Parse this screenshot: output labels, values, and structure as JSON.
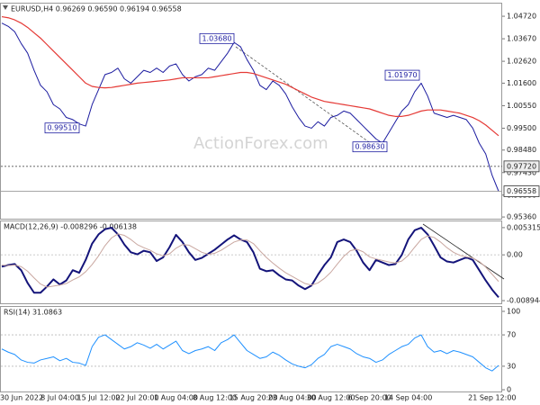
{
  "chart_data": [
    {
      "type": "line",
      "title": "EURUSD,H4 0.96269 0.96590 0.96194 0.96558",
      "watermark": "ActionForex.com",
      "ylim": [
        0.9528,
        1.0531
      ],
      "yticks": [
        {
          "value": 1.0472,
          "label": "1.04720"
        },
        {
          "value": 1.0367,
          "label": "1.03670"
        },
        {
          "value": 1.0262,
          "label": "1.02620"
        },
        {
          "value": 1.016,
          "label": "1.01600"
        },
        {
          "value": 1.0055,
          "label": "1.00550"
        },
        {
          "value": 0.995,
          "label": "0.99500"
        },
        {
          "value": 0.9848,
          "label": "0.98480"
        },
        {
          "value": 0.9743,
          "label": "0.97430"
        },
        {
          "value": 0.9638,
          "label": "0.96380"
        },
        {
          "value": 0.9536,
          "label": "0.95360"
        }
      ],
      "hlines": [
        {
          "value": 0.9772,
          "label": "0.97720",
          "style": "dashed"
        },
        {
          "value": 0.96558,
          "label": "0.96558",
          "style": "solid"
        }
      ],
      "annotations": [
        {
          "value": 1.0368,
          "label": "1.03680"
        },
        {
          "value": 1.0197,
          "label": "1.01970"
        },
        {
          "value": 0.9951,
          "label": "0.99510"
        },
        {
          "value": 0.9863,
          "label": "0.98630"
        }
      ],
      "series": [
        {
          "color": "#1c1ca0",
          "width": 1,
          "values": [
            1.044,
            1.0425,
            1.04,
            1.0345,
            1.03,
            1.022,
            1.015,
            1.012,
            1.006,
            1.004,
            1.0,
            0.999,
            0.997,
            0.996,
            1.006,
            1.013,
            1.02,
            1.021,
            1.023,
            1.018,
            1.016,
            1.019,
            1.022,
            1.021,
            1.023,
            1.021,
            1.024,
            1.025,
            1.02,
            1.017,
            1.019,
            1.02,
            1.023,
            1.022,
            1.026,
            1.03,
            1.035,
            1.033,
            1.027,
            1.022,
            1.015,
            1.013,
            1.017,
            1.015,
            1.011,
            1.005,
            1.0,
            0.996,
            0.995,
            0.998,
            0.996,
            1.0,
            1.001,
            1.003,
            1.002,
            0.999,
            0.996,
            0.993,
            0.99,
            0.988,
            0.993,
            0.998,
            1.003,
            1.006,
            1.012,
            1.016,
            1.01,
            1.002,
            1.001,
            1.0,
            1.001,
            1.0,
            0.999,
            0.995,
            0.988,
            0.983,
            0.973,
            0.9656
          ]
        },
        {
          "color": "#e53935",
          "width": 1.2,
          "values": [
            1.047,
            1.0465,
            1.0455,
            1.044,
            1.042,
            1.0395,
            1.037,
            1.034,
            1.031,
            1.028,
            1.025,
            1.022,
            1.019,
            1.016,
            1.0145,
            1.014,
            1.0138,
            1.014,
            1.0145,
            1.015,
            1.0155,
            1.016,
            1.0163,
            1.0166,
            1.0169,
            1.0172,
            1.0175,
            1.018,
            1.0185,
            1.0185,
            1.0185,
            1.0185,
            1.0185,
            1.019,
            1.0195,
            1.02,
            1.0205,
            1.021,
            1.021,
            1.0205,
            1.0195,
            1.0185,
            1.0175,
            1.0165,
            1.0155,
            1.014,
            1.0125,
            1.011,
            1.0095,
            1.0085,
            1.0075,
            1.007,
            1.0065,
            1.006,
            1.0055,
            1.005,
            1.0045,
            1.004,
            1.003,
            1.002,
            1.001,
            1.0005,
            1.0005,
            1.001,
            1.002,
            1.003,
            1.0035,
            1.0035,
            1.0035,
            1.003,
            1.0025,
            1.002,
            1.001,
            1.0,
            0.9985,
            0.9965,
            0.994,
            0.9915
          ]
        }
      ]
    },
    {
      "type": "line",
      "title": "MACD(12,26,9) -0.008296 -0.006138",
      "ylim": [
        -0.00964,
        0.00653
      ],
      "yticks": [
        0.005315,
        {
          "value": 0,
          "label": "0.00"
        },
        -0.008944
      ],
      "levels": [
        0
      ],
      "series": [
        {
          "color": "#14147a",
          "width": 2,
          "values": [
            -0.0023,
            -0.002,
            -0.0018,
            -0.003,
            -0.0055,
            -0.0074,
            -0.0074,
            -0.0062,
            -0.0048,
            -0.0058,
            -0.005,
            -0.003,
            -0.0035,
            -0.001,
            0.0022,
            0.004,
            0.005,
            0.0053,
            0.004,
            0.002,
            0.0005,
            0.0001,
            0.0008,
            0.0005,
            -0.0012,
            -0.0005,
            0.0015,
            0.0039,
            0.0025,
            0.0005,
            -0.001,
            -0.0006,
            0.0002,
            0.001,
            0.002,
            0.003,
            0.0038,
            0.003,
            0.0025,
            0.0005,
            -0.0027,
            -0.0032,
            -0.003,
            -0.004,
            -0.0048,
            -0.005,
            -0.006,
            -0.0067,
            -0.006,
            -0.0039,
            -0.002,
            -0.0005,
            0.0025,
            0.003,
            0.0025,
            0.0008,
            -0.0015,
            -0.003,
            -0.001,
            -0.0015,
            -0.002,
            -0.0018,
            0,
            0.003,
            0.0048,
            0.0053,
            0.004,
            0.0018,
            -0.0005,
            -0.0013,
            -0.0015,
            -0.001,
            -0.0005,
            -0.001,
            -0.003,
            -0.005,
            -0.0068,
            -0.0083
          ]
        },
        {
          "color": "#c9a7a0",
          "width": 1,
          "values": [
            -0.002,
            -0.0021,
            -0.002,
            -0.0023,
            -0.0032,
            -0.0045,
            -0.0057,
            -0.0063,
            -0.0061,
            -0.0059,
            -0.0056,
            -0.0049,
            -0.0043,
            -0.0033,
            -0.0019,
            -0.0002,
            0.0018,
            0.0033,
            0.0041,
            0.0038,
            0.003,
            0.002,
            0.0014,
            0.0009,
            0.0002,
            -0.0002,
            0.0002,
            0.0013,
            0.002,
            0.0019,
            0.0012,
            0.0005,
            0.0001,
            0.0003,
            0.0009,
            0.0017,
            0.0025,
            0.0029,
            0.0029,
            0.0022,
            0.0008,
            -0.0005,
            -0.0016,
            -0.0026,
            -0.0035,
            -0.0042,
            -0.0049,
            -0.0056,
            -0.0059,
            -0.0055,
            -0.0046,
            -0.0034,
            -0.0018,
            -0.0003,
            0.0008,
            0.0011,
            0.0006,
            -0.0004,
            -0.0008,
            -0.0011,
            -0.0014,
            -0.0016,
            -0.0012,
            -0.0001,
            0.0015,
            0.003,
            0.0037,
            0.0034,
            0.0025,
            0.0014,
            0.0005,
            -0.0001,
            -0.0004,
            -0.0006,
            -0.0013,
            -0.0024,
            -0.0038,
            -0.0052
          ]
        }
      ]
    },
    {
      "type": "line",
      "title": "RSI(14) 31.0863",
      "ylim": [
        -3.4,
        105.7
      ],
      "yticks": [
        100,
        70,
        30,
        0
      ],
      "levels": [
        70,
        30
      ],
      "categories": [
        null,
        null,
        null,
        "30 Jun 2022",
        null,
        null,
        null,
        null,
        null,
        "8 Jul 04:00",
        null,
        null,
        null,
        null,
        null,
        "15 Jul 12:00",
        null,
        null,
        null,
        null,
        null,
        "22 Jul 20:00",
        null,
        null,
        null,
        null,
        null,
        "1 Aug 04:00",
        null,
        null,
        null,
        null,
        null,
        "8 Aug 12:00",
        null,
        null,
        null,
        null,
        null,
        "15 Aug 20:00",
        null,
        null,
        null,
        null,
        null,
        "23 Aug 04:00",
        null,
        null,
        null,
        null,
        null,
        "30 Aug 12:00",
        null,
        null,
        null,
        null,
        null,
        "6 Sep 20:00",
        null,
        null,
        null,
        null,
        null,
        "14 Sep 04:00",
        null,
        null,
        null,
        null,
        null,
        null,
        null,
        null,
        null,
        null,
        null,
        null,
        "21 Sep 12:00",
        null
      ],
      "series": [
        {
          "color": "#1e90ff",
          "width": 1,
          "values": [
            52,
            48,
            45,
            38,
            35,
            34,
            38,
            40,
            42,
            37,
            40,
            35,
            34,
            31,
            55,
            67,
            70,
            64,
            58,
            52,
            55,
            60,
            57,
            53,
            58,
            52,
            57,
            62,
            50,
            46,
            50,
            52,
            55,
            50,
            60,
            64,
            70,
            60,
            50,
            45,
            40,
            42,
            48,
            44,
            38,
            33,
            30,
            28,
            32,
            40,
            45,
            55,
            58,
            55,
            52,
            46,
            42,
            40,
            35,
            38,
            45,
            50,
            55,
            58,
            66,
            70,
            55,
            48,
            50,
            46,
            50,
            48,
            45,
            42,
            35,
            28,
            24,
            31
          ]
        }
      ]
    }
  ]
}
